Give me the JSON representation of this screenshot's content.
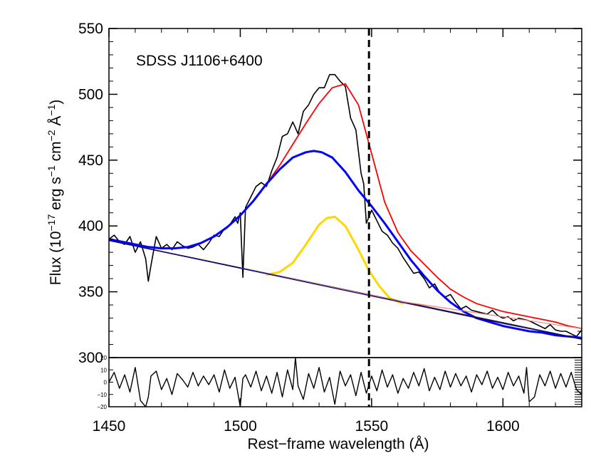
{
  "chart_data": [
    {
      "type": "line",
      "panel": "main",
      "annotation": "SDSS J1106+6400",
      "xlabel": "Rest−frame wavelength (Å)",
      "ylabel": "Flux (10^-17 erg s^-1 cm^-2 Å^-1)",
      "ylabel_parts": {
        "a": "Flux (10",
        "b": "−17",
        "c": " erg s",
        "d": "−1",
        "e": " cm",
        "f": "−2",
        "g": " Å",
        "h": "−1",
        "i": ")"
      },
      "xlim": [
        1450,
        1630
      ],
      "ylim": [
        300,
        550
      ],
      "xticks": [
        1450,
        1500,
        1550,
        1600
      ],
      "xtick_labels": [
        "1450",
        "1500",
        "1550",
        "1600"
      ],
      "yticks": [
        300,
        350,
        400,
        450,
        500,
        550
      ],
      "ytick_labels": [
        "300",
        "350",
        "400",
        "450",
        "500",
        "550"
      ],
      "vline": {
        "x": 1549,
        "style": "dashed",
        "color": "#000000"
      },
      "series": [
        {
          "name": "spectrum",
          "color": "#000000",
          "x": [
            1450,
            1452,
            1454,
            1456,
            1458,
            1460,
            1462,
            1464,
            1465,
            1466,
            1468,
            1470,
            1472,
            1474,
            1476,
            1478,
            1480,
            1482,
            1484,
            1486,
            1488,
            1490,
            1492,
            1494,
            1496,
            1498,
            1499,
            1500,
            1501,
            1502,
            1504,
            1506,
            1508,
            1510,
            1512,
            1514,
            1516,
            1518,
            1520,
            1522,
            1524,
            1526,
            1528,
            1530,
            1532,
            1534,
            1536,
            1538,
            1540,
            1542,
            1544,
            1546,
            1547,
            1548,
            1550,
            1552,
            1554,
            1556,
            1558,
            1560,
            1562,
            1564,
            1566,
            1568,
            1570,
            1572,
            1574,
            1576,
            1578,
            1580,
            1582,
            1584,
            1586,
            1588,
            1590,
            1592,
            1594,
            1596,
            1598,
            1600,
            1602,
            1604,
            1606,
            1608,
            1610,
            1612,
            1614,
            1616,
            1618,
            1620,
            1622,
            1624,
            1626,
            1628,
            1630
          ],
          "y": [
            390,
            393,
            388,
            386,
            392,
            380,
            388,
            375,
            358,
            370,
            392,
            383,
            386,
            382,
            388,
            385,
            383,
            384,
            386,
            382,
            387,
            393,
            392,
            398,
            401,
            407,
            402,
            410,
            361,
            414,
            422,
            430,
            433,
            430,
            442,
            452,
            468,
            470,
            479,
            470,
            487,
            492,
            500,
            505,
            505,
            515,
            515,
            510,
            506,
            482,
            473,
            440,
            432,
            402,
            412,
            404,
            396,
            393,
            387,
            383,
            376,
            370,
            364,
            365,
            360,
            353,
            356,
            349,
            346,
            348,
            342,
            337,
            339,
            336,
            335,
            334,
            333,
            336,
            332,
            330,
            331,
            328,
            330,
            329,
            328,
            326,
            324,
            322,
            325,
            321,
            320,
            320,
            318,
            316,
            321
          ]
        },
        {
          "name": "total-fit",
          "color": "#ff0000",
          "x": [
            1450,
            1455,
            1460,
            1465,
            1470,
            1475,
            1480,
            1485,
            1490,
            1495,
            1500,
            1505,
            1510,
            1515,
            1520,
            1525,
            1530,
            1535,
            1540,
            1545,
            1550,
            1555,
            1560,
            1565,
            1570,
            1575,
            1580,
            1585,
            1590,
            1595,
            1600,
            1605,
            1610,
            1615,
            1620,
            1625,
            1630
          ],
          "y": [
            390,
            388,
            386,
            384,
            383,
            383,
            384,
            387,
            392,
            399,
            408,
            419,
            432,
            446,
            462,
            478,
            493,
            505,
            508,
            492,
            455,
            418,
            395,
            381,
            371,
            361,
            352,
            346,
            341,
            338,
            335,
            333,
            331,
            329,
            327,
            324,
            322
          ]
        },
        {
          "name": "broad-gaussian",
          "color": "#0000ff",
          "x": [
            1450,
            1455,
            1460,
            1465,
            1470,
            1475,
            1480,
            1485,
            1490,
            1495,
            1500,
            1505,
            1510,
            1515,
            1520,
            1525,
            1528,
            1531,
            1535,
            1540,
            1545,
            1550,
            1555,
            1560,
            1565,
            1570,
            1575,
            1580,
            1585,
            1590,
            1595,
            1600,
            1605,
            1610,
            1615,
            1620,
            1625,
            1630
          ],
          "y": [
            390,
            388,
            386,
            384,
            383,
            383,
            384,
            387,
            392,
            399,
            408,
            419,
            432,
            443,
            452,
            456,
            457,
            456,
            452,
            441,
            427,
            415,
            402,
            388,
            374,
            362,
            351,
            342,
            335,
            330,
            327,
            324,
            322,
            320,
            319,
            317,
            316,
            315
          ]
        },
        {
          "name": "narrow-gaussian",
          "color": "#ffd700",
          "x": [
            1510,
            1515,
            1520,
            1525,
            1530,
            1533,
            1536,
            1540,
            1545,
            1549,
            1553,
            1557,
            1562
          ],
          "y": [
            363,
            365,
            372,
            386,
            401,
            406,
            407,
            400,
            382,
            366,
            354,
            345,
            341
          ]
        },
        {
          "name": "continuum",
          "color": "#3d1f1f",
          "x": [
            1450,
            1630
          ],
          "y": [
            389,
            314
          ]
        },
        {
          "name": "continuum-upper",
          "color": "#f08080",
          "x": [
            1500,
            1560,
            1600,
            1630
          ],
          "y": [
            368,
            343,
            331,
            322
          ]
        },
        {
          "name": "continuum-lower",
          "color": "#00008b",
          "x": [
            1450,
            1540,
            1600,
            1630
          ],
          "y": [
            389,
            351,
            326,
            314
          ]
        }
      ]
    },
    {
      "type": "line",
      "panel": "residual",
      "ylim": [
        -20,
        20
      ],
      "yticks": [
        -20,
        -10,
        0,
        10,
        20
      ],
      "ytick_labels": [
        "−20",
        "−10",
        "0",
        "10",
        "20"
      ],
      "series": [
        {
          "name": "residuals",
          "color": "#000000",
          "x": [
            1450,
            1452,
            1454,
            1456,
            1458,
            1460,
            1462,
            1464,
            1465,
            1466,
            1468,
            1470,
            1472,
            1474,
            1476,
            1478,
            1480,
            1482,
            1484,
            1486,
            1488,
            1490,
            1492,
            1494,
            1496,
            1498,
            1500,
            1501,
            1502,
            1504,
            1506,
            1508,
            1510,
            1512,
            1514,
            1516,
            1518,
            1520,
            1521,
            1522,
            1524,
            1526,
            1528,
            1530,
            1532,
            1534,
            1536,
            1538,
            1540,
            1542,
            1544,
            1546,
            1548,
            1550,
            1552,
            1554,
            1556,
            1558,
            1560,
            1562,
            1564,
            1566,
            1568,
            1570,
            1572,
            1574,
            1576,
            1578,
            1580,
            1582,
            1584,
            1586,
            1588,
            1590,
            1592,
            1594,
            1596,
            1598,
            1600,
            1602,
            1604,
            1606,
            1608,
            1609,
            1610,
            1612,
            1614,
            1616,
            1618,
            1620,
            1622,
            1624,
            1626,
            1628,
            1630
          ],
          "y": [
            0,
            8,
            -5,
            6,
            -8,
            12,
            -15,
            -20,
            -12,
            5,
            9,
            -6,
            3,
            -10,
            7,
            2,
            -4,
            8,
            -3,
            5,
            -2,
            6,
            -8,
            10,
            -5,
            4,
            -20,
            3,
            6,
            -4,
            9,
            -7,
            5,
            -9,
            8,
            -12,
            10,
            -6,
            20,
            -3,
            -14,
            7,
            -5,
            12,
            -8,
            4,
            -18,
            9,
            -3,
            6,
            -11,
            8,
            -9,
            5,
            -7,
            10,
            -4,
            6,
            -9,
            3,
            -5,
            8,
            -3,
            11,
            -7,
            4,
            -6,
            9,
            -4,
            7,
            -3,
            5,
            -8,
            6,
            -2,
            9,
            -5,
            4,
            -6,
            8,
            -3,
            5,
            -9,
            12,
            -16,
            -12,
            6,
            -3,
            9,
            -5,
            7,
            -4,
            8,
            -6,
            -10
          ]
        }
      ]
    }
  ]
}
